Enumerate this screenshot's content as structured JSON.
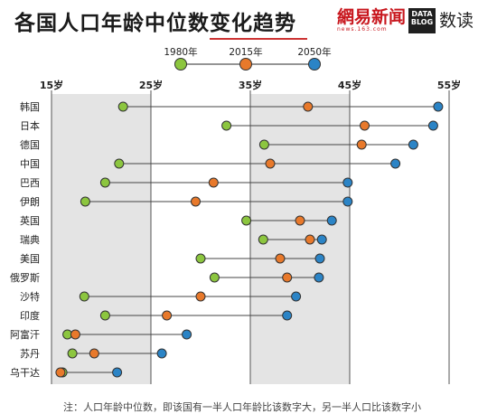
{
  "header": {
    "title": "各国人口年龄中位数变化趋势",
    "brand_main": "網易新闻",
    "brand_sub": "news.163.com",
    "blog_badge": "DATA BLOG",
    "blog_name": "数读"
  },
  "footnote": "注：人口年龄中位数，即该国有一半人口年龄比该数字大，另一半人口比该数字小",
  "chart_data": {
    "type": "dot-range",
    "x_ticks": [
      "15岁",
      "25岁",
      "35岁",
      "45岁",
      "55岁"
    ],
    "xlim": [
      15,
      55
    ],
    "legend": [
      {
        "name": "1980年",
        "color": "#8cc63f"
      },
      {
        "name": "2015年",
        "color": "#e8792b"
      },
      {
        "name": "2050年",
        "color": "#2b84c6"
      }
    ],
    "categories": [
      "韩国",
      "日本",
      "德国",
      "中国",
      "巴西",
      "伊朗",
      "英国",
      "瑞典",
      "美国",
      "俄罗斯",
      "沙特",
      "印度",
      "阿富汗",
      "苏丹",
      "乌干达"
    ],
    "series": [
      {
        "name": "1980年",
        "values": [
          22.2,
          32.6,
          36.4,
          21.8,
          20.4,
          18.4,
          34.6,
          36.3,
          30.0,
          31.4,
          18.3,
          20.4,
          16.6,
          17.1,
          16.1
        ]
      },
      {
        "name": "2015年",
        "values": [
          40.8,
          46.5,
          46.2,
          37.0,
          31.3,
          29.5,
          40.0,
          41.0,
          38.0,
          38.7,
          30.0,
          26.6,
          17.4,
          19.3,
          15.9
        ]
      },
      {
        "name": "2050年",
        "values": [
          53.9,
          53.4,
          51.4,
          49.6,
          44.8,
          44.8,
          43.2,
          42.2,
          42.0,
          41.9,
          39.6,
          38.7,
          28.6,
          26.1,
          21.6
        ]
      }
    ],
    "grid": true,
    "shaded_bands": [
      [
        15,
        25
      ],
      [
        35,
        45
      ]
    ]
  }
}
